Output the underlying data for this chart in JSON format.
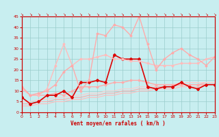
{
  "xlabel": "Vent moyen/en rafales ( km/h )",
  "background_color": "#c8eef0",
  "grid_color": "#99cccc",
  "xlim": [
    0,
    23
  ],
  "ylim": [
    0,
    45
  ],
  "yticks": [
    0,
    5,
    10,
    15,
    20,
    25,
    30,
    35,
    40,
    45
  ],
  "xticks": [
    0,
    1,
    2,
    3,
    4,
    5,
    6,
    7,
    8,
    9,
    10,
    11,
    12,
    13,
    14,
    15,
    16,
    17,
    18,
    19,
    20,
    21,
    22,
    23
  ],
  "series": [
    {
      "x": [
        0,
        1,
        2,
        3,
        4,
        5,
        6,
        7,
        8,
        9,
        10,
        11,
        12,
        13,
        14,
        15,
        16,
        17,
        18,
        19,
        20,
        21,
        22,
        23
      ],
      "y": [
        3,
        3,
        4,
        4,
        5,
        5,
        6,
        6,
        7,
        7,
        8,
        8,
        9,
        9,
        10,
        10,
        11,
        11,
        11,
        12,
        12,
        12,
        13,
        13
      ],
      "color": "#ffbbbb",
      "lw": 0.8,
      "marker": null,
      "ms": 0
    },
    {
      "x": [
        0,
        1,
        2,
        3,
        4,
        5,
        6,
        7,
        8,
        9,
        10,
        11,
        12,
        13,
        14,
        15,
        16,
        17,
        18,
        19,
        20,
        21,
        22,
        23
      ],
      "y": [
        4,
        4,
        5,
        5,
        6,
        6,
        7,
        7,
        8,
        8,
        9,
        9,
        10,
        10,
        11,
        11,
        12,
        12,
        12,
        13,
        13,
        13,
        14,
        14
      ],
      "color": "#ffaaaa",
      "lw": 0.8,
      "marker": null,
      "ms": 0
    },
    {
      "x": [
        0,
        1,
        2,
        3,
        4,
        5,
        6,
        7,
        8,
        9,
        10,
        11,
        12,
        13,
        14,
        15,
        16,
        17,
        18,
        19,
        20,
        21,
        22,
        23
      ],
      "y": [
        5,
        5,
        6,
        6,
        7,
        7,
        8,
        8,
        9,
        9,
        10,
        10,
        11,
        11,
        12,
        12,
        13,
        13,
        13,
        14,
        14,
        14,
        14,
        14
      ],
      "color": "#ffcccc",
      "lw": 0.8,
      "marker": null,
      "ms": 0
    },
    {
      "x": [
        0,
        1,
        2,
        3,
        4,
        5,
        6,
        7,
        8,
        9,
        10,
        11,
        12,
        13,
        14,
        15,
        16,
        17,
        18,
        19,
        20,
        21,
        22,
        23
      ],
      "y": [
        12,
        8,
        8,
        8,
        9,
        8,
        10,
        12,
        12,
        12,
        13,
        14,
        14,
        15,
        15,
        14,
        13,
        13,
        13,
        13,
        13,
        13,
        13,
        13
      ],
      "color": "#ffaaaa",
      "lw": 1.0,
      "marker": "D",
      "ms": 1.5
    },
    {
      "x": [
        0,
        1,
        2,
        3,
        4,
        5,
        6,
        7,
        8,
        9,
        10,
        11,
        12,
        13,
        14,
        15,
        16,
        17,
        18,
        19,
        20,
        21,
        22,
        23
      ],
      "y": [
        7,
        4,
        5,
        8,
        8,
        10,
        7,
        14,
        14,
        15,
        14,
        27,
        25,
        25,
        25,
        12,
        11,
        12,
        12,
        14,
        12,
        11,
        13,
        13
      ],
      "color": "#dd0000",
      "lw": 1.2,
      "marker": "D",
      "ms": 2
    },
    {
      "x": [
        0,
        1,
        2,
        3,
        4,
        5,
        6,
        7,
        8,
        9,
        10,
        11,
        12,
        13,
        14,
        15,
        16,
        17,
        18,
        19,
        20,
        21,
        22,
        23
      ],
      "y": [
        11,
        8,
        8,
        11,
        22,
        32,
        22,
        25,
        25,
        26,
        27,
        25,
        25,
        24,
        24,
        23,
        22,
        22,
        22,
        23,
        23,
        23,
        25,
        26
      ],
      "color": "#ffbbbb",
      "lw": 1.0,
      "marker": "D",
      "ms": 1.5
    },
    {
      "x": [
        0,
        1,
        2,
        3,
        4,
        5,
        6,
        7,
        8,
        9,
        10,
        11,
        12,
        13,
        14,
        15,
        16,
        17,
        18,
        19,
        20,
        21,
        22,
        23
      ],
      "y": [
        12,
        8,
        9,
        10,
        13,
        19,
        22,
        10,
        15,
        37,
        36,
        41,
        40,
        36,
        45,
        32,
        20,
        25,
        28,
        30,
        27,
        25,
        22,
        26
      ],
      "color": "#ffaaaa",
      "lw": 1.0,
      "marker": "D",
      "ms": 1.5
    }
  ]
}
